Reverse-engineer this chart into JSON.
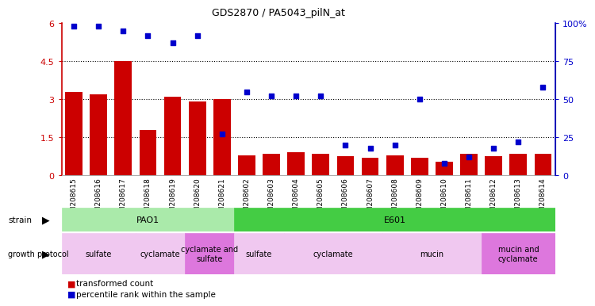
{
  "title": "GDS2870 / PA5043_pilN_at",
  "samples": [
    "GSM208615",
    "GSM208616",
    "GSM208617",
    "GSM208618",
    "GSM208619",
    "GSM208620",
    "GSM208621",
    "GSM208602",
    "GSM208603",
    "GSM208604",
    "GSM208605",
    "GSM208606",
    "GSM208607",
    "GSM208608",
    "GSM208609",
    "GSM208610",
    "GSM208611",
    "GSM208612",
    "GSM208613",
    "GSM208614"
  ],
  "transformed_count": [
    3.3,
    3.2,
    4.5,
    1.8,
    3.1,
    2.9,
    3.0,
    0.8,
    0.85,
    0.9,
    0.85,
    0.75,
    0.7,
    0.8,
    0.7,
    0.55,
    0.85,
    0.75,
    0.85,
    0.85
  ],
  "percentile_rank": [
    98,
    98,
    95,
    92,
    87,
    92,
    27,
    55,
    52,
    52,
    52,
    20,
    18,
    20,
    50,
    8,
    12,
    18,
    22,
    58
  ],
  "bar_color": "#cc0000",
  "dot_color": "#0000cc",
  "ylim_left": [
    0,
    6
  ],
  "ylim_right": [
    0,
    100
  ],
  "yticks_left": [
    0,
    1.5,
    3.0,
    4.5,
    6
  ],
  "ytick_labels_left": [
    "0",
    "1.5",
    "3",
    "4.5",
    "6"
  ],
  "yticks_right": [
    0,
    25,
    50,
    75,
    100
  ],
  "ytick_labels_right": [
    "0",
    "25",
    "50",
    "75",
    "100%"
  ],
  "hlines": [
    1.5,
    3.0,
    4.5
  ],
  "strain_groups": [
    {
      "label": "PAO1",
      "start": 0,
      "end": 7,
      "color": "#aaeaaa"
    },
    {
      "label": "E601",
      "start": 7,
      "end": 20,
      "color": "#44cc44"
    }
  ],
  "growth_groups": [
    {
      "label": "sulfate",
      "start": 0,
      "end": 3,
      "color": "#f0c8f0"
    },
    {
      "label": "cyclamate",
      "start": 3,
      "end": 5,
      "color": "#f0c8f0"
    },
    {
      "label": "cyclamate and\nsulfate",
      "start": 5,
      "end": 7,
      "color": "#dd77dd"
    },
    {
      "label": "sulfate",
      "start": 7,
      "end": 9,
      "color": "#f0c8f0"
    },
    {
      "label": "cyclamate",
      "start": 9,
      "end": 13,
      "color": "#f0c8f0"
    },
    {
      "label": "mucin",
      "start": 13,
      "end": 17,
      "color": "#f0c8f0"
    },
    {
      "label": "mucin and\ncyclamate",
      "start": 17,
      "end": 20,
      "color": "#dd77dd"
    }
  ],
  "bg_color": "#ffffff",
  "plot_bg": "#ffffff",
  "tick_bg": "#d8d8d8"
}
